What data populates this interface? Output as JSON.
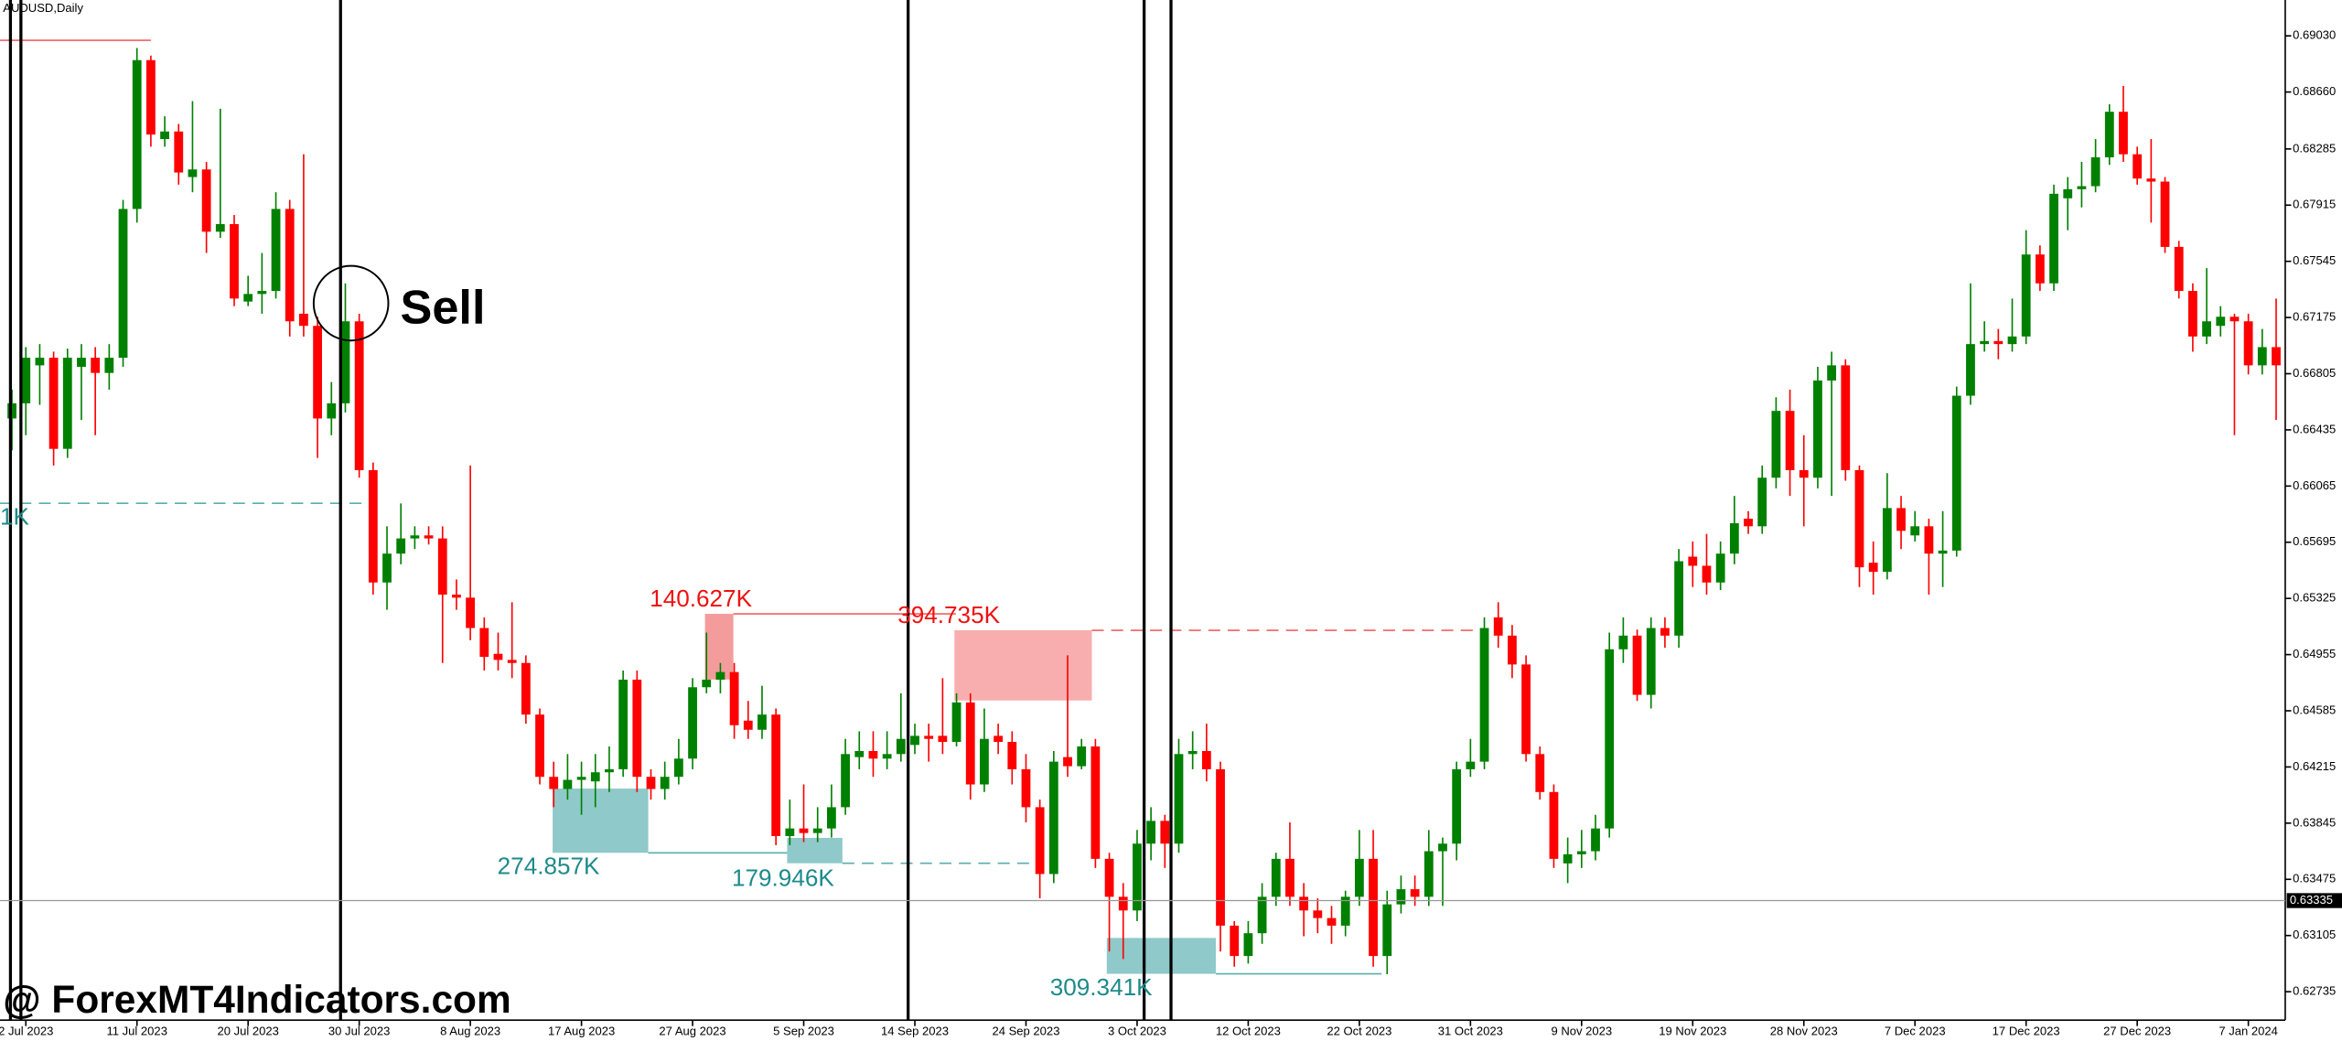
{
  "chart_data": {
    "type": "candlestick",
    "title": "AUDUSD,Daily",
    "watermark": "@ ForexMT4Indicators.com",
    "annotations": {
      "signal": "Sell",
      "supply": [
        "140.627K",
        "394.735K"
      ],
      "demand": [
        "274.857K",
        "179.946K",
        "309.341K",
        "1K"
      ]
    },
    "up_color": "#008000",
    "down_color": "#ff0000",
    "ylim": [
      0.62548,
      0.69266
    ],
    "yticks": [
      {
        "value": 0.6903,
        "label": "0.69030"
      },
      {
        "value": 0.6866,
        "label": "0.68660"
      },
      0.68285,
      0.67915,
      0.67545,
      0.67175,
      0.66805,
      0.66435,
      0.66065,
      0.65695,
      0.65325,
      0.64955,
      0.64585,
      0.64215,
      0.63845,
      0.63475,
      0.63105,
      0.62735
    ],
    "current_price": 0.63335,
    "categories": [
      null,
      "2 Jul 2023",
      null,
      null,
      null,
      null,
      null,
      null,
      null,
      "11 Jul 2023",
      null,
      null,
      null,
      null,
      null,
      null,
      null,
      "20 Jul 2023",
      null,
      null,
      null,
      null,
      null,
      null,
      null,
      "30 Jul 2023",
      null,
      null,
      null,
      null,
      null,
      null,
      null,
      "8 Aug 2023",
      null,
      null,
      null,
      null,
      null,
      null,
      null,
      "17 Aug 2023",
      null,
      null,
      null,
      null,
      null,
      null,
      null,
      "27 Aug 2023",
      null,
      null,
      null,
      null,
      null,
      null,
      null,
      "5 Sep 2023",
      null,
      null,
      null,
      null,
      null,
      null,
      null,
      "14 Sep 2023",
      null,
      null,
      null,
      null,
      null,
      null,
      null,
      "24 Sep 2023",
      null,
      null,
      null,
      null,
      null,
      null,
      null,
      "3 Oct 2023",
      null,
      null,
      null,
      null,
      null,
      null,
      null,
      "12 Oct 2023",
      null,
      null,
      null,
      null,
      null,
      null,
      null,
      "22 Oct 2023",
      null,
      null,
      null,
      null,
      null,
      null,
      null,
      "31 Oct 2023",
      null,
      null,
      null,
      null,
      null,
      null,
      null,
      "9 Nov 2023",
      null,
      null,
      null,
      null,
      null,
      null,
      null,
      "19 Nov 2023",
      null,
      null,
      null,
      null,
      null,
      null,
      null,
      "28 Nov 2023",
      null,
      null,
      null,
      null,
      null,
      null,
      null,
      "7 Dec 2023",
      null,
      null,
      null,
      null,
      null,
      null,
      null,
      "17 Dec 2023",
      null,
      null,
      null,
      null,
      null,
      null,
      null,
      "27 Dec 2023",
      null,
      null,
      null,
      null,
      null,
      null,
      null,
      "7 Jan 2024",
      null,
      null
    ],
    "open": [
      0.6651,
      0.6661,
      0.6686,
      0.6691,
      0.6631,
      0.6685,
      0.6691,
      0.6681,
      0.6691,
      0.6789,
      0.6887,
      0.6835,
      0.684,
      0.681,
      0.6815,
      0.6774,
      0.6779,
      0.6728,
      0.6733,
      0.6735,
      0.6789,
      0.672,
      0.6712,
      0.6651,
      0.6661,
      0.6715,
      0.6617,
      0.6543,
      0.6562,
      0.6572,
      0.6574,
      0.6572,
      0.6535,
      0.6533,
      0.6513,
      0.6496,
      0.6492,
      0.649,
      0.6456,
      0.6415,
      0.6407,
      0.6413,
      0.6412,
      0.6418,
      0.642,
      0.6479,
      0.6415,
      0.6407,
      0.6415,
      0.6427,
      0.6474,
      0.6479,
      0.6484,
      0.6452,
      0.6446,
      0.6456,
      0.6376,
      0.6381,
      0.6378,
      0.6381,
      0.6395,
      0.6428,
      0.6432,
      0.6427,
      0.643,
      0.6436,
      0.6442,
      0.6442,
      0.6438,
      0.6464,
      0.641,
      0.6442,
      0.6438,
      0.642,
      0.6395,
      0.6351,
      0.6428,
      0.6422,
      0.6435,
      0.6361,
      0.6336,
      0.6327,
      0.6371,
      0.6386,
      0.6371,
      0.643,
      0.6432,
      0.642,
      0.6317,
      0.6297,
      0.6312,
      0.6336,
      0.6361,
      0.6336,
      0.6327,
      0.6322,
      0.6317,
      0.6336,
      0.6361,
      0.6297,
      0.6331,
      0.6341,
      0.6336,
      0.6366,
      0.6371,
      0.642,
      0.6425,
      0.652,
      0.6508,
      0.6489,
      0.643,
      0.6405,
      0.6358,
      0.6364,
      0.6366,
      0.6381,
      0.6499,
      0.6508,
      0.6469,
      0.6513,
      0.6508,
      0.656,
      0.6554,
      0.6543,
      0.6562,
      0.6585,
      0.658,
      0.6612,
      0.6656,
      0.6617,
      0.6612,
      0.6676,
      0.6686,
      0.6617,
      0.6556,
      0.655,
      0.6592,
      0.6574,
      0.658,
      0.6562,
      0.6564,
      0.6666,
      0.67,
      0.6702,
      0.67,
      0.6705,
      0.6759,
      0.674,
      0.6796,
      0.6802,
      0.6804,
      0.6823,
      0.6853,
      0.6825,
      0.6809,
      0.6807,
      0.6764,
      0.6735,
      0.6705,
      0.6712,
      0.6718,
      0.6715,
      0.6686,
      0.6698
    ],
    "high": [
      0.667,
      0.6698,
      0.67,
      0.6695,
      0.6697,
      0.67,
      0.6698,
      0.67,
      0.6795,
      0.6895,
      0.689,
      0.685,
      0.6845,
      0.686,
      0.682,
      0.6855,
      0.6785,
      0.6745,
      0.676,
      0.68,
      0.6795,
      0.6825,
      0.6718,
      0.6675,
      0.674,
      0.672,
      0.6622,
      0.658,
      0.6595,
      0.658,
      0.658,
      0.658,
      0.6545,
      0.662,
      0.652,
      0.651,
      0.653,
      0.6495,
      0.646,
      0.6425,
      0.643,
      0.6425,
      0.643,
      0.6435,
      0.6485,
      0.6485,
      0.642,
      0.6425,
      0.644,
      0.648,
      0.651,
      0.649,
      0.649,
      0.6465,
      0.6475,
      0.646,
      0.64,
      0.641,
      0.6395,
      0.641,
      0.644,
      0.6445,
      0.6445,
      0.6445,
      0.647,
      0.645,
      0.645,
      0.648,
      0.647,
      0.647,
      0.646,
      0.645,
      0.6445,
      0.643,
      0.64,
      0.6432,
      0.6495,
      0.644,
      0.644,
      0.6365,
      0.6345,
      0.638,
      0.6395,
      0.639,
      0.644,
      0.6445,
      0.645,
      0.6425,
      0.632,
      0.632,
      0.6345,
      0.6365,
      0.6385,
      0.6345,
      0.6335,
      0.633,
      0.634,
      0.638,
      0.638,
      0.634,
      0.635,
      0.635,
      0.638,
      0.6375,
      0.6425,
      0.644,
      0.652,
      0.653,
      0.6515,
      0.6495,
      0.6435,
      0.641,
      0.6375,
      0.638,
      0.639,
      0.651,
      0.652,
      0.6512,
      0.652,
      0.652,
      0.6565,
      0.657,
      0.6575,
      0.657,
      0.66,
      0.659,
      0.662,
      0.6665,
      0.667,
      0.664,
      0.6685,
      0.6695,
      0.669,
      0.662,
      0.657,
      0.6615,
      0.66,
      0.659,
      0.6585,
      0.659,
      0.6672,
      0.674,
      0.6715,
      0.671,
      0.673,
      0.6775,
      0.6765,
      0.6805,
      0.681,
      0.682,
      0.6835,
      0.6858,
      0.687,
      0.683,
      0.6835,
      0.681,
      0.6768,
      0.674,
      0.675,
      0.6725,
      0.672,
      0.672,
      0.671,
      0.673
    ],
    "low": [
      0.663,
      0.664,
      0.666,
      0.662,
      0.6625,
      0.665,
      0.664,
      0.667,
      0.6685,
      0.678,
      0.683,
      0.683,
      0.6805,
      0.68,
      0.676,
      0.677,
      0.6725,
      0.6725,
      0.672,
      0.673,
      0.6705,
      0.6705,
      0.6625,
      0.664,
      0.6655,
      0.6612,
      0.6535,
      0.6525,
      0.6555,
      0.6565,
      0.6568,
      0.649,
      0.6525,
      0.6505,
      0.6485,
      0.6485,
      0.648,
      0.645,
      0.641,
      0.6395,
      0.64,
      0.639,
      0.6395,
      0.6405,
      0.6415,
      0.6405,
      0.64,
      0.64,
      0.641,
      0.642,
      0.647,
      0.647,
      0.644,
      0.644,
      0.644,
      0.637,
      0.637,
      0.6372,
      0.6372,
      0.6375,
      0.639,
      0.642,
      0.6415,
      0.642,
      0.6425,
      0.643,
      0.6425,
      0.643,
      0.6435,
      0.64,
      0.6405,
      0.643,
      0.641,
      0.6385,
      0.6335,
      0.6345,
      0.6415,
      0.642,
      0.6355,
      0.63,
      0.6295,
      0.632,
      0.636,
      0.6355,
      0.6365,
      0.642,
      0.6412,
      0.63,
      0.629,
      0.6292,
      0.6305,
      0.633,
      0.633,
      0.631,
      0.6312,
      0.6305,
      0.631,
      0.633,
      0.629,
      0.6285,
      0.6325,
      0.633,
      0.633,
      0.633,
      0.636,
      0.6415,
      0.642,
      0.65,
      0.648,
      0.6425,
      0.64,
      0.6355,
      0.6345,
      0.6355,
      0.636,
      0.6375,
      0.649,
      0.6465,
      0.646,
      0.65,
      0.65,
      0.654,
      0.6535,
      0.6538,
      0.6555,
      0.6575,
      0.6575,
      0.6605,
      0.66,
      0.658,
      0.6605,
      0.66,
      0.661,
      0.654,
      0.6535,
      0.6545,
      0.6565,
      0.657,
      0.6535,
      0.654,
      0.656,
      0.666,
      0.6695,
      0.669,
      0.6695,
      0.67,
      0.6735,
      0.6735,
      0.6775,
      0.679,
      0.68,
      0.6818,
      0.682,
      0.6805,
      0.678,
      0.676,
      0.673,
      0.6695,
      0.67,
      0.6705,
      0.664,
      0.668,
      0.668,
      0.665
    ],
    "close": [
      0.6661,
      0.6691,
      0.6691,
      0.6631,
      0.6691,
      0.6691,
      0.6681,
      0.6691,
      0.6789,
      0.6887,
      0.6838,
      0.684,
      0.6813,
      0.6815,
      0.6774,
      0.6779,
      0.673,
      0.6733,
      0.6735,
      0.6789,
      0.6715,
      0.6712,
      0.6651,
      0.6661,
      0.6715,
      0.6617,
      0.6543,
      0.6562,
      0.6572,
      0.6574,
      0.6572,
      0.6535,
      0.6533,
      0.6513,
      0.6494,
      0.6492,
      0.649,
      0.6456,
      0.6415,
      0.6407,
      0.6413,
      0.6415,
      0.6418,
      0.642,
      0.6479,
      0.6415,
      0.6407,
      0.6415,
      0.6427,
      0.6474,
      0.6479,
      0.6484,
      0.6449,
      0.6446,
      0.6456,
      0.6376,
      0.6381,
      0.6378,
      0.6381,
      0.6395,
      0.643,
      0.6432,
      0.6427,
      0.643,
      0.644,
      0.6442,
      0.644,
      0.6438,
      0.6464,
      0.641,
      0.644,
      0.6438,
      0.642,
      0.6395,
      0.6351,
      0.6425,
      0.6422,
      0.6435,
      0.6361,
      0.6336,
      0.6327,
      0.6371,
      0.6386,
      0.6371,
      0.643,
      0.6432,
      0.642,
      0.6317,
      0.6297,
      0.6312,
      0.6336,
      0.6361,
      0.6336,
      0.6327,
      0.6322,
      0.6317,
      0.6336,
      0.6361,
      0.6297,
      0.6331,
      0.6341,
      0.6336,
      0.6366,
      0.6371,
      0.642,
      0.6425,
      0.6513,
      0.6508,
      0.6489,
      0.643,
      0.6405,
      0.6361,
      0.6364,
      0.6366,
      0.6381,
      0.6499,
      0.6508,
      0.6469,
      0.6513,
      0.6508,
      0.6557,
      0.6554,
      0.6543,
      0.6562,
      0.6582,
      0.658,
      0.6612,
      0.6656,
      0.6617,
      0.6612,
      0.6676,
      0.6686,
      0.6617,
      0.6553,
      0.655,
      0.6592,
      0.6577,
      0.658,
      0.6562,
      0.6564,
      0.6666,
      0.67,
      0.6702,
      0.67,
      0.6705,
      0.6759,
      0.674,
      0.6799,
      0.6802,
      0.6804,
      0.6823,
      0.6853,
      0.6825,
      0.6809,
      0.6807,
      0.6764,
      0.6735,
      0.6705,
      0.6715,
      0.6718,
      0.6715,
      0.6686,
      0.6698,
      0.6686
    ]
  }
}
